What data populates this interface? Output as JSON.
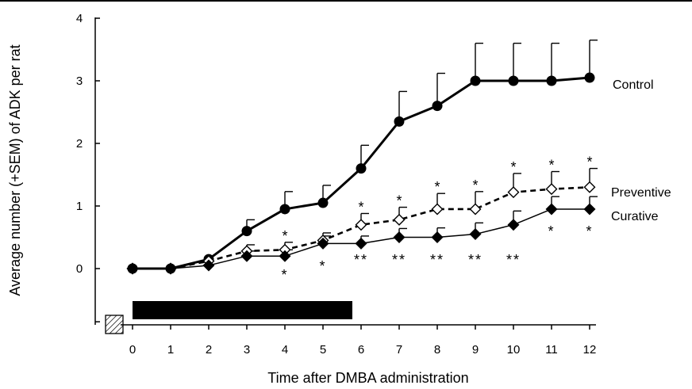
{
  "chart_data": {
    "type": "line",
    "title": "",
    "xlabel": "Time after DMBA administration",
    "ylabel": "Average number (+SEM) of ADK per rat",
    "x": [
      0,
      1,
      2,
      3,
      4,
      5,
      6,
      7,
      8,
      9,
      10,
      11,
      12
    ],
    "xticks": [
      "0",
      "1",
      "2",
      "3",
      "4",
      "5",
      "6",
      "7",
      "8",
      "9",
      "10",
      "11",
      "12"
    ],
    "yticks": [
      "0",
      "1",
      "2",
      "3",
      "4"
    ],
    "xlim": [
      0,
      12
    ],
    "ylim": [
      0,
      4
    ],
    "grid": false,
    "series": [
      {
        "name": "Control",
        "marker": "filled-circle",
        "line": "solid-thick",
        "values": [
          0,
          0,
          0.15,
          0.6,
          0.95,
          1.05,
          1.6,
          2.35,
          2.6,
          3.0,
          3.0,
          3.0,
          3.05
        ],
        "sem": [
          0,
          0,
          0,
          0.18,
          0.28,
          0.28,
          0.37,
          0.48,
          0.52,
          0.6,
          0.6,
          0.6,
          0.6
        ]
      },
      {
        "name": "Preventive",
        "marker": "open-diamond",
        "line": "dashed",
        "values": [
          0,
          0,
          0.12,
          0.28,
          0.3,
          0.45,
          0.7,
          0.78,
          0.95,
          0.95,
          1.22,
          1.27,
          1.3
        ],
        "sem": [
          0,
          0,
          0,
          0.1,
          0.12,
          0.12,
          0.18,
          0.2,
          0.25,
          0.28,
          0.3,
          0.28,
          0.3
        ]
      },
      {
        "name": "Curative",
        "marker": "filled-diamond",
        "line": "solid-thin",
        "values": [
          0,
          0,
          0.05,
          0.2,
          0.2,
          0.4,
          0.4,
          0.5,
          0.5,
          0.55,
          0.7,
          0.95,
          0.95
        ],
        "sem": [
          0,
          0,
          0,
          0.08,
          0.1,
          0.12,
          0.12,
          0.14,
          0.15,
          0.18,
          0.22,
          0.2,
          0.2
        ]
      }
    ],
    "annotations": {
      "preventive_stars": [
        {
          "x": 4,
          "text": "*"
        },
        {
          "x": 6,
          "text": "*"
        },
        {
          "x": 7,
          "text": "*"
        },
        {
          "x": 8,
          "text": "*"
        },
        {
          "x": 9,
          "text": "*"
        },
        {
          "x": 10,
          "text": "*"
        },
        {
          "x": 11,
          "text": "*"
        },
        {
          "x": 12,
          "text": "*"
        }
      ],
      "curative_stars": [
        {
          "x": 4,
          "text": "*"
        },
        {
          "x": 5,
          "text": "*"
        },
        {
          "x": 6,
          "text": "**"
        },
        {
          "x": 7,
          "text": "**"
        },
        {
          "x": 8,
          "text": "**"
        },
        {
          "x": 9,
          "text": "**"
        },
        {
          "x": 10,
          "text": "**"
        },
        {
          "x": 11,
          "text": "*"
        },
        {
          "x": 12,
          "text": "*"
        }
      ]
    },
    "treatment_bar": {
      "start": 0,
      "end": 6
    },
    "pre_bar": {
      "pattern": "hatched"
    }
  }
}
